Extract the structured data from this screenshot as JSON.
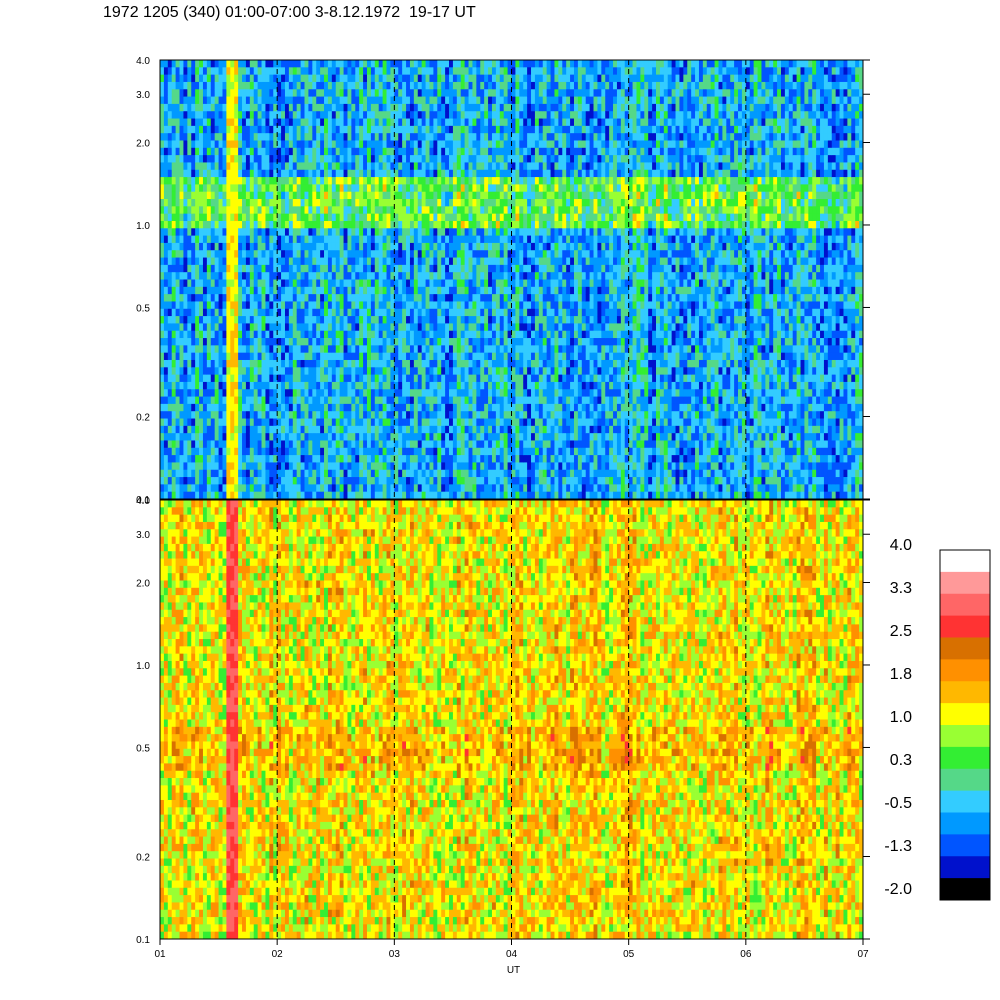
{
  "title": "1972 1205 (340) 01:00-07:00 3-8.12.1972  19-17 UT",
  "chart_data": [
    {
      "type": "heatmap",
      "panel": "upper",
      "y_scale": "log",
      "ylim": [
        0.1,
        4.0
      ],
      "y_ticks": [
        "0.1",
        "0.2",
        "0.5",
        "1.0",
        "2.0",
        "3.0",
        "4.0"
      ],
      "xlim": [
        "01",
        "07"
      ],
      "x_ticks": [
        "01",
        "02",
        "03",
        "04",
        "05",
        "06",
        "07"
      ],
      "grid": "dashed vertical lines at each hour",
      "background_level": -0.5,
      "features": [
        {
          "name": "band",
          "y": [
            1.0,
            1.5
          ],
          "level": 0.7
        },
        {
          "name": "burst",
          "x": 1.63,
          "level": 1.5
        }
      ]
    },
    {
      "type": "heatmap",
      "panel": "lower",
      "y_scale": "log",
      "ylim": [
        0.1,
        4.0
      ],
      "y_ticks": [
        "0.1",
        "0.2",
        "0.5",
        "1.0",
        "2.0",
        "3.0",
        "4.0"
      ],
      "xlim": [
        "01",
        "07"
      ],
      "x_ticks": [
        "01",
        "02",
        "03",
        "04",
        "05",
        "06",
        "07"
      ],
      "xlabel": "UT",
      "grid": "dashed vertical lines at each hour",
      "background_level": 1.3,
      "features": [
        {
          "name": "band",
          "y": [
            0.4,
            0.6
          ],
          "level": 1.7
        },
        {
          "name": "burst",
          "x": 1.63,
          "level": 3.2
        }
      ]
    }
  ],
  "colorbar": {
    "tick_labels": [
      "4.0",
      "3.3",
      "2.5",
      "1.8",
      "1.0",
      "0.3",
      "-0.5",
      "-1.3",
      "-2.0"
    ],
    "colors": [
      "#ffffff",
      "#ff9999",
      "#ff6666",
      "#ff3333",
      "#d87000",
      "#ff9000",
      "#ffb800",
      "#ffff00",
      "#99ff33",
      "#33ee33",
      "#55d888",
      "#33ccff",
      "#0099ff",
      "#0055ff",
      "#0011cc",
      "#000000"
    ]
  }
}
